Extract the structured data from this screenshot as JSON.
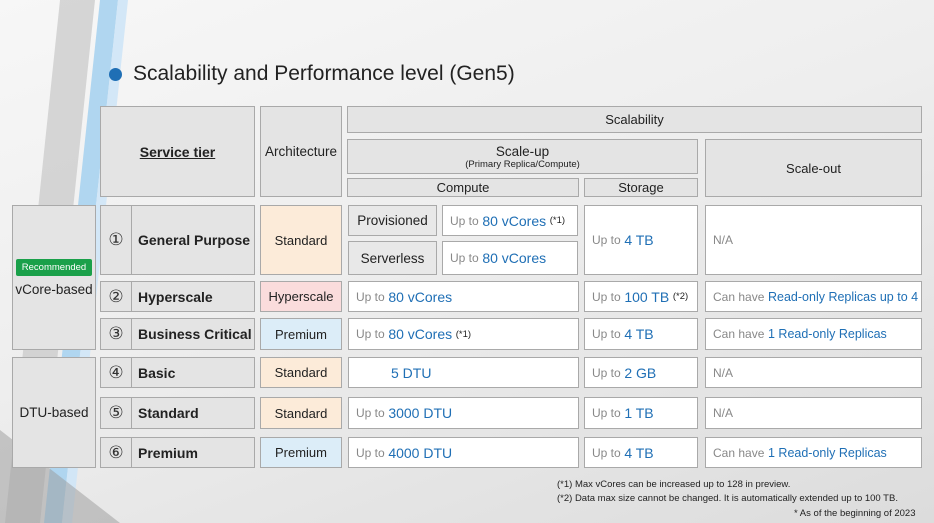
{
  "title": "Scalability and Performance level (Gen5)",
  "headers": {
    "service_tier": "Service tier",
    "architecture": "Architecture",
    "scalability": "Scalability",
    "scale_up": "Scale-up",
    "scale_up_sub": "(Primary Replica/Compute)",
    "compute": "Compute",
    "storage": "Storage",
    "scale_out": "Scale-out"
  },
  "groups": {
    "vcore_badge": "Recommended",
    "vcore_label": "vCore-based",
    "dtu_label": "DTU-based"
  },
  "rows": [
    {
      "num": "①",
      "tier": "General Purpose",
      "arch": "Standard",
      "provisioned": "Provisioned",
      "prov_prefix": "Up to",
      "prov_value": "80 vCores",
      "prov_note": "(*1)",
      "serverless": "Serverless",
      "serv_prefix": "Up to",
      "serv_value": "80 vCores",
      "storage_prefix": "Up to",
      "storage_value": "4 TB",
      "scaleout": "N/A"
    },
    {
      "num": "②",
      "tier": "Hyperscale",
      "arch": "Hyperscale",
      "compute_prefix": "Up to",
      "compute_value": "80 vCores",
      "storage_prefix": "Up to",
      "storage_value": "100 TB",
      "storage_note": "(*2)",
      "scaleout_prefix": "Can have",
      "scaleout_value": "Read-only Replicas up to 4"
    },
    {
      "num": "③",
      "tier": "Business Critical",
      "arch": "Premium",
      "compute_prefix": "Up to",
      "compute_value": "80 vCores",
      "compute_note": "(*1)",
      "storage_prefix": "Up to",
      "storage_value": "4 TB",
      "scaleout_prefix": "Can have",
      "scaleout_value": "1 Read-only Replicas"
    },
    {
      "num": "④",
      "tier": "Basic",
      "arch": "Standard",
      "compute_value": "5 DTU",
      "storage_prefix": "Up to",
      "storage_value": "2 GB",
      "scaleout": "N/A"
    },
    {
      "num": "⑤",
      "tier": "Standard",
      "arch": "Standard",
      "compute_prefix": "Up to",
      "compute_value": "3000 DTU",
      "storage_prefix": "Up to",
      "storage_value": "1 TB",
      "scaleout": "N/A"
    },
    {
      "num": "⑥",
      "tier": "Premium",
      "arch": "Premium",
      "compute_prefix": "Up to",
      "compute_value": "4000 DTU",
      "storage_prefix": "Up to",
      "storage_value": "4 TB",
      "scaleout_prefix": "Can have",
      "scaleout_value": "1 Read-only Replicas"
    }
  ],
  "footnotes": {
    "note1": "(*1) Max vCores can be increased up to 128 in preview.",
    "note2": "(*2) Data max size cannot be changed. It is automatically extended up to 100 TB.",
    "asof": "* As of the beginning of 2023"
  },
  "colors": {
    "accent_blue": "#1f6fb5",
    "badge_green": "#1aa04a",
    "standard_fill": "#fcebd9",
    "hyperscale_fill": "#fadcdc",
    "premium_fill": "#dcedf8"
  }
}
